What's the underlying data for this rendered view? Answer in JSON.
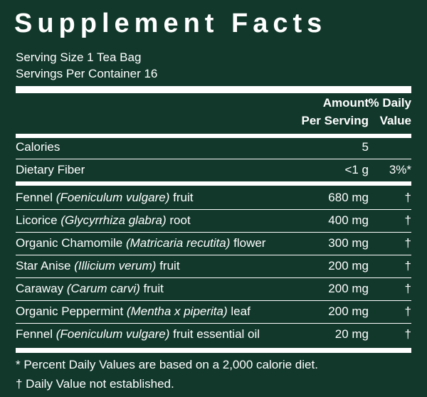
{
  "title": "Supplement Facts",
  "serving": [
    "Serving Size 1 Tea Bag",
    "Servings Per Container 16"
  ],
  "header": {
    "amount": [
      "Amount",
      "Per Serving"
    ],
    "dv": [
      "% Daily",
      "Value"
    ]
  },
  "nutrients": [
    {
      "name": "Calories",
      "amount": "5"
    },
    {
      "name": "Dietary Fiber",
      "amount": "<1 g",
      "dv": "3%*"
    }
  ],
  "ingredients": [
    {
      "name": "Fennel",
      "latin": "(Foeniculum vulgare)",
      "part": "fruit",
      "amount": "680 mg",
      "dv": "†"
    },
    {
      "name": "Licorice",
      "latin": "(Glycyrrhiza glabra)",
      "part": "root",
      "amount": "400 mg",
      "dv": "†"
    },
    {
      "name": "Organic Chamomile",
      "latin": "(Matricaria recutita)",
      "part": "flower",
      "amount": "300 mg",
      "dv": "†"
    },
    {
      "name": "Star Anise",
      "latin": "(Illicium verum)",
      "part": "fruit",
      "amount": "200 mg",
      "dv": "†"
    },
    {
      "name": "Caraway",
      "latin": "(Carum carvi)",
      "part": "fruit",
      "amount": "200 mg",
      "dv": "†"
    },
    {
      "name": "Organic Peppermint",
      "latin": "(Mentha x piperita)",
      "part": "leaf",
      "amount": "200 mg",
      "dv": "†"
    },
    {
      "name": "Fennel",
      "latin": "(Foeniculum vulgare)",
      "part": "fruit essential oil",
      "amount": "20 mg",
      "dv": "†"
    }
  ],
  "footnotes": [
    "* Percent Daily Values are based on a 2,000 calorie diet.",
    "† Daily Value not established."
  ]
}
